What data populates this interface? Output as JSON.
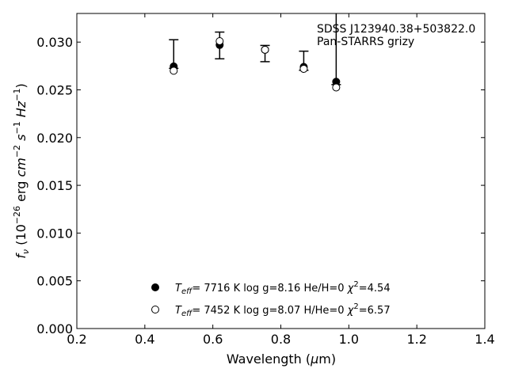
{
  "chart_data": {
    "type": "scatter",
    "title": "",
    "xlabel": "Wavelength (μm)",
    "ylabel": "fν (10⁻²⁶ erg cm⁻² s⁻¹ Hz⁻¹)",
    "xlim": [
      0.2,
      1.4
    ],
    "ylim": [
      0.0,
      0.033
    ],
    "xticks": [
      "0.2",
      "0.4",
      "0.6",
      "0.8",
      "1.0",
      "1.2",
      "1.4"
    ],
    "yticks": [
      "0.000",
      "0.005",
      "0.010",
      "0.015",
      "0.020",
      "0.025",
      "0.030"
    ],
    "grid": false,
    "legend_position": "bottom-center",
    "annotations": [
      "SDSS J123940.38+503822.0",
      "Pan-STARRS grizy"
    ],
    "observed": {
      "x": [
        0.4849,
        0.6201,
        0.7535,
        0.8674,
        0.9628
      ],
      "y": [
        0.02745,
        0.02975,
        0.02915,
        0.02745,
        0.02585
      ],
      "err_low": [
        0.02725,
        0.02825,
        0.02795,
        0.02705,
        0.02555
      ],
      "err_high": [
        0.03025,
        0.03105,
        0.02965,
        0.02905,
        0.0331
      ]
    },
    "series": [
      {
        "name": "Teff= 7716 K log g=8.16 He/H=0 χ²=4.54",
        "marker": "filled",
        "x": [
          0.4849,
          0.6201,
          0.7535,
          0.8674,
          0.9628
        ],
        "y": [
          0.02745,
          0.0297,
          0.0292,
          0.0274,
          0.02585
        ]
      },
      {
        "name": "Teff= 7452 K log g=8.07 H/He=0 χ²=6.57",
        "marker": "open",
        "x": [
          0.4849,
          0.6201,
          0.7535,
          0.8674,
          0.9628
        ],
        "y": [
          0.027,
          0.0301,
          0.0292,
          0.0272,
          0.02525
        ]
      }
    ],
    "legend": [
      {
        "teff_val": "7716 K",
        "logg": "log g=8.16",
        "comp": "He/H=0",
        "chi_val": "=4.54"
      },
      {
        "teff_val": "7452 K",
        "logg": "log g=8.07",
        "comp": "H/He=0",
        "chi_val": "=6.57"
      }
    ],
    "colors": {
      "marker": "#000000",
      "axis": "#000000",
      "background": "#ffffff"
    }
  }
}
